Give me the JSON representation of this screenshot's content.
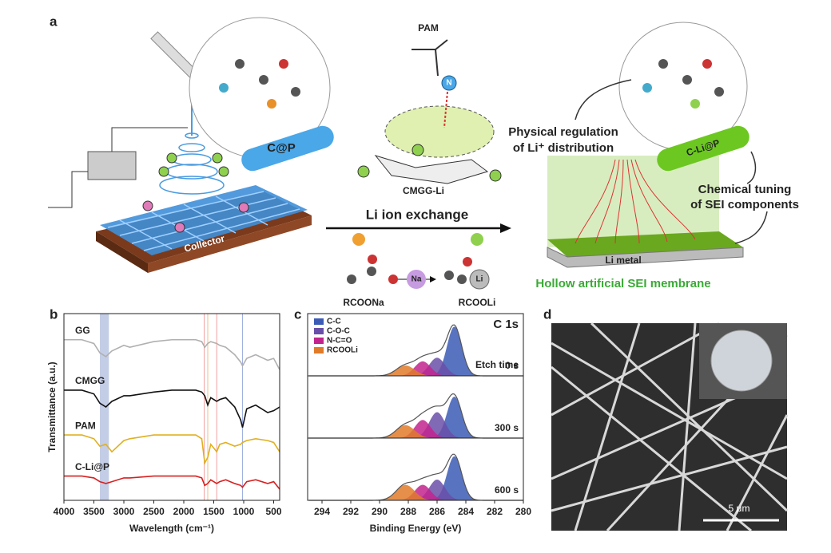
{
  "diagram": {
    "panel_label": "a",
    "pam": "PAM",
    "atom_n": "N",
    "cp": "C@P",
    "cmgg_li": "CMGG-Li",
    "collector": "Collector",
    "exchange": "Li ion exchange",
    "rcoona": "RCOONa",
    "atom_na": "Na",
    "rcooli": "RCOOLi",
    "atom_li": "Li",
    "physical": [
      "Physical regulation",
      "of Li⁺ distribution"
    ],
    "clip": "C-Li@P",
    "chemical": [
      "Chemical tuning",
      "of SEI components"
    ],
    "li_metal": "Li metal",
    "membrane": "Hollow artificial SEI membrane"
  },
  "chart_data": [
    {
      "type": "line",
      "panel_label": "b",
      "x_label": "Wavelength (cm⁻¹)",
      "y_label": "Transmittance (a.u.)",
      "xlim": [
        4000,
        400
      ],
      "xticks": [
        4000,
        3500,
        3000,
        2500,
        2000,
        1500,
        1000,
        500
      ],
      "ylim": [
        0,
        10
      ],
      "band": [
        3400,
        3250
      ],
      "band_color": "#a9b8dc",
      "lines": [
        {
          "x": 1660,
          "color": "#f0a0a0"
        },
        {
          "x": 1600,
          "color": "#f0c080"
        },
        {
          "x": 1450,
          "color": "#f0a0a0"
        },
        {
          "x": 1020,
          "color": "#a0b0e0"
        }
      ],
      "x": [
        4000,
        3700,
        3500,
        3400,
        3300,
        3200,
        3000,
        2900,
        2500,
        2200,
        2000,
        1800,
        1700,
        1650,
        1600,
        1550,
        1450,
        1400,
        1300,
        1150,
        1050,
        1020,
        950,
        800,
        600,
        500,
        400
      ],
      "series": [
        {
          "name": "GG",
          "color": "#b0b0b0",
          "values": [
            8.6,
            8.6,
            8.4,
            7.9,
            7.7,
            8.0,
            8.3,
            8.2,
            8.5,
            8.6,
            8.6,
            8.6,
            8.5,
            8.2,
            8.4,
            8.5,
            8.4,
            8.3,
            8.2,
            7.8,
            7.4,
            7.2,
            7.6,
            7.8,
            7.5,
            7.6,
            7.0
          ]
        },
        {
          "name": "CMGG",
          "color": "#111111",
          "values": [
            5.9,
            5.9,
            5.7,
            5.2,
            5.0,
            5.3,
            5.6,
            5.6,
            5.8,
            5.9,
            5.9,
            5.9,
            5.8,
            5.6,
            5.1,
            5.5,
            5.3,
            5.4,
            5.5,
            5.0,
            4.3,
            3.9,
            4.9,
            5.1,
            4.7,
            4.8,
            5.0
          ]
        },
        {
          "name": "PAM",
          "color": "#e0b020",
          "values": [
            3.5,
            3.5,
            3.3,
            2.9,
            3.0,
            2.6,
            3.2,
            3.3,
            3.5,
            3.5,
            3.5,
            3.5,
            3.3,
            2.0,
            2.3,
            3.0,
            2.6,
            3.0,
            3.1,
            2.9,
            3.0,
            3.1,
            3.2,
            3.3,
            3.2,
            3.1,
            2.6
          ]
        },
        {
          "name": "C-Li@P",
          "color": "#d62020",
          "values": [
            1.3,
            1.3,
            1.2,
            1.0,
            0.9,
            1.0,
            1.2,
            1.2,
            1.3,
            1.3,
            1.3,
            1.3,
            1.2,
            0.8,
            0.9,
            1.1,
            0.9,
            1.0,
            1.1,
            0.9,
            0.8,
            0.7,
            1.0,
            1.1,
            0.9,
            1.0,
            0.6
          ]
        }
      ]
    },
    {
      "type": "xps",
      "panel_label": "c",
      "title": "C 1s",
      "x_label": "Binding Energy (eV)",
      "etch_label": "Etch time",
      "xlim": [
        295,
        280
      ],
      "xticks": [
        294,
        292,
        290,
        288,
        286,
        284,
        282,
        280
      ],
      "ylim": [
        0,
        1.2
      ],
      "components": [
        {
          "name": "C-C",
          "color": "#3b5bb5"
        },
        {
          "name": "C-O-C",
          "color": "#6a4fa8"
        },
        {
          "name": "N-C=O",
          "color": "#c2248e"
        },
        {
          "name": "RCOOLi",
          "color": "#e07b2a"
        }
      ],
      "panels": [
        {
          "label": "0 s",
          "peaks": [
            {
              "center": 284.8,
              "height": 0.95,
              "fwhm": 1.2
            },
            {
              "center": 286.0,
              "height": 0.35,
              "fwhm": 1.3
            },
            {
              "center": 287.0,
              "height": 0.28,
              "fwhm": 1.3
            },
            {
              "center": 288.2,
              "height": 0.2,
              "fwhm": 1.5
            }
          ]
        },
        {
          "label": "300 s",
          "peaks": [
            {
              "center": 284.8,
              "height": 0.8,
              "fwhm": 1.2
            },
            {
              "center": 286.0,
              "height": 0.5,
              "fwhm": 1.3
            },
            {
              "center": 287.0,
              "height": 0.35,
              "fwhm": 1.3
            },
            {
              "center": 288.2,
              "height": 0.25,
              "fwhm": 1.5
            }
          ]
        },
        {
          "label": "600 s",
          "peaks": [
            {
              "center": 284.8,
              "height": 0.85,
              "fwhm": 1.2
            },
            {
              "center": 286.0,
              "height": 0.4,
              "fwhm": 1.3
            },
            {
              "center": 287.0,
              "height": 0.3,
              "fwhm": 1.3
            },
            {
              "center": 288.2,
              "height": 0.3,
              "fwhm": 1.5
            }
          ]
        }
      ]
    }
  ],
  "micrograph": {
    "panel_label": "d",
    "scale_bar": "5 μm"
  }
}
